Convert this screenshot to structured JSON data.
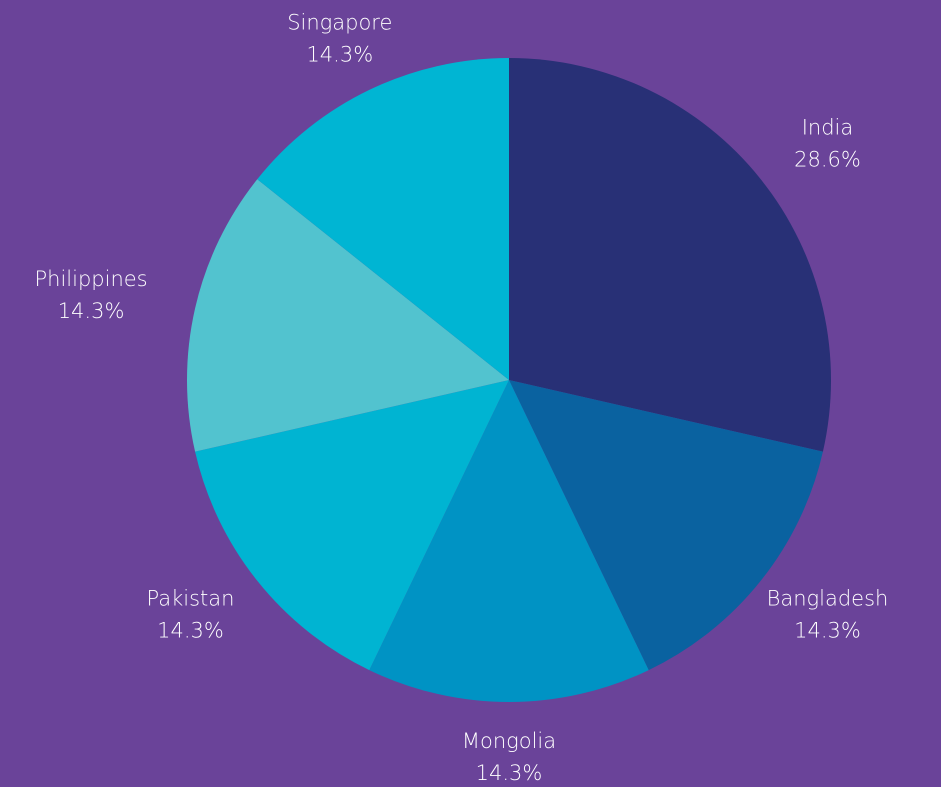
{
  "chart_data": {
    "type": "pie",
    "categories": [
      "India",
      "Bangladesh",
      "Mongolia",
      "Pakistan",
      "Philippines",
      "Singapore"
    ],
    "values": [
      28.6,
      14.3,
      14.3,
      14.3,
      14.3,
      14.3
    ],
    "value_labels": [
      "28.6%",
      "14.3%",
      "14.3%",
      "14.3%",
      "14.3%",
      "14.3%"
    ],
    "colors": [
      "#283076",
      "#0a62a0",
      "#0093c4",
      "#00b4d2",
      "#52c3cf",
      "#00b5d3"
    ]
  }
}
